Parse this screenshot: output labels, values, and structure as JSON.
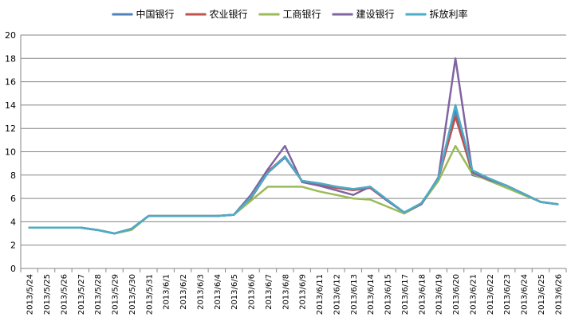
{
  "chart_data": {
    "type": "line",
    "title": "",
    "xlabel": "",
    "ylabel": "",
    "ylim": [
      0,
      20
    ],
    "ytick_step": 2,
    "grid": "horizontal",
    "legend_position": "top",
    "categories": [
      "2013/5/24",
      "2013/5/25",
      "2013/5/26",
      "2013/5/27",
      "2013/5/28",
      "2013/5/29",
      "2013/5/30",
      "2013/5/31",
      "2013/6/1",
      "2013/6/2",
      "2013/6/3",
      "2013/6/4",
      "2013/6/5",
      "2013/6/6",
      "2013/6/7",
      "2013/6/8",
      "2013/6/9",
      "2013/6/11",
      "2013/6/12",
      "2013/6/13",
      "2013/6/14",
      "2013/6/15",
      "2013/6/17",
      "2013/6/18",
      "2013/6/19",
      "2013/6/20",
      "2013/6/21",
      "2013/6/22",
      "2013/6/23",
      "2013/6/24",
      "2013/6/25",
      "2013/6/26"
    ],
    "series": [
      {
        "name": "中国银行",
        "color": "#4F81BD",
        "values": [
          3.5,
          3.5,
          3.5,
          3.5,
          3.3,
          3.0,
          3.4,
          4.5,
          4.5,
          4.5,
          4.5,
          4.5,
          4.6,
          6.0,
          8.2,
          9.5,
          7.5,
          7.3,
          7.0,
          6.8,
          6.9,
          5.8,
          4.8,
          5.5,
          7.6,
          13.5,
          8.0,
          7.6,
          7.1,
          6.4,
          5.7,
          5.5
        ]
      },
      {
        "name": "农业银行",
        "color": "#C0504D",
        "values": [
          3.5,
          3.5,
          3.5,
          3.5,
          3.3,
          3.0,
          3.4,
          4.5,
          4.5,
          4.5,
          4.5,
          4.5,
          4.6,
          6.0,
          8.3,
          9.6,
          7.5,
          7.2,
          6.9,
          6.7,
          6.9,
          5.8,
          4.8,
          5.5,
          7.7,
          13.0,
          8.2,
          7.6,
          7.1,
          6.4,
          5.7,
          5.5
        ]
      },
      {
        "name": "工商银行",
        "color": "#9BBB59",
        "values": [
          3.5,
          3.5,
          3.5,
          3.5,
          3.3,
          3.0,
          3.3,
          4.5,
          4.5,
          4.5,
          4.5,
          4.5,
          4.6,
          5.8,
          7.0,
          7.0,
          7.0,
          6.6,
          6.3,
          6.0,
          5.9,
          5.3,
          4.7,
          5.5,
          7.5,
          10.5,
          8.1,
          7.5,
          6.9,
          6.3,
          5.7,
          5.5
        ]
      },
      {
        "name": "建设银行",
        "color": "#8064A2",
        "values": [
          3.5,
          3.5,
          3.5,
          3.5,
          3.3,
          3.0,
          3.4,
          4.5,
          4.5,
          4.5,
          4.5,
          4.5,
          4.6,
          6.3,
          8.5,
          10.5,
          7.4,
          7.1,
          6.7,
          6.3,
          7.0,
          5.8,
          4.8,
          5.5,
          7.8,
          18.0,
          8.2,
          7.6,
          7.1,
          6.4,
          5.7,
          5.5
        ]
      },
      {
        "name": "拆放利率",
        "color": "#4BACC6",
        "values": [
          3.5,
          3.5,
          3.5,
          3.5,
          3.3,
          3.0,
          3.4,
          4.5,
          4.5,
          4.5,
          4.5,
          4.5,
          4.6,
          6.1,
          8.2,
          9.6,
          7.5,
          7.3,
          7.0,
          6.8,
          7.0,
          5.9,
          4.8,
          5.6,
          7.7,
          14.0,
          8.4,
          7.7,
          7.1,
          6.4,
          5.7,
          5.5
        ]
      }
    ]
  }
}
